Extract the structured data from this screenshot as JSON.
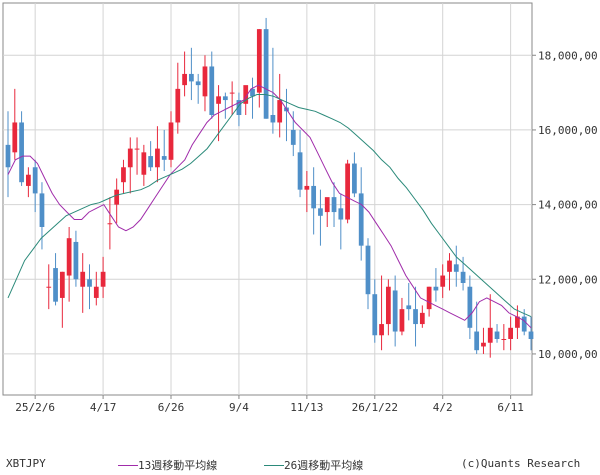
{
  "chart_data": {
    "type": "candlestick",
    "symbol": "XBTJPY",
    "source": "(c)Quants Research",
    "yticks": [
      10000,
      12000,
      14000,
      16000,
      18000
    ],
    "ytick_labels": [
      "10,000,00",
      "12,000,00",
      "14,000,00",
      "16,000,00",
      "18,000,00"
    ],
    "ylim": [
      8900,
      19400
    ],
    "xticks": [
      "25/2/6",
      "4/17",
      "6/26",
      "9/4",
      "11/13",
      "26/1/22",
      "4/2",
      "6/11"
    ],
    "grid": true,
    "colors": {
      "up": "#e8283c",
      "down": "#4f8fc8",
      "ma13": "#a02caa",
      "ma26": "#2b8a7a"
    },
    "series": [
      {
        "name": "13週移動平均線",
        "color": "#a02caa",
        "values": [
          14800,
          15200,
          15300,
          15300,
          15100,
          14700,
          14300,
          14000,
          13800,
          13600,
          13600,
          13800,
          13900,
          14000,
          13700,
          13400,
          13300,
          13400,
          13600,
          13900,
          14200,
          14500,
          14800,
          15000,
          15200,
          15600,
          15900,
          16200,
          16400,
          16500,
          16600,
          16700,
          16800,
          17100,
          17200,
          17100,
          17000,
          16800,
          16500,
          16200,
          16000,
          15800,
          15400,
          15000,
          14600,
          14300,
          14200,
          14100,
          14000,
          13800,
          13500,
          13200,
          12900,
          12500,
          12100,
          11800,
          11500,
          11400,
          11300,
          11200,
          11100,
          11000,
          10900,
          11100,
          11400,
          11500,
          11400,
          11300,
          11100,
          11000,
          10900,
          10700
        ]
      },
      {
        "name": "26週移動平均線",
        "color": "#2b8a7a",
        "values": [
          11500,
          12000,
          12500,
          12800,
          13100,
          13300,
          13500,
          13700,
          13800,
          13900,
          14000,
          14050,
          14150,
          14250,
          14300,
          14350,
          14400,
          14500,
          14650,
          14750,
          14850,
          14950,
          15100,
          15300,
          15500,
          15800,
          16100,
          16400,
          16700,
          16850,
          16950,
          16950,
          16900,
          16800,
          16700,
          16600,
          16550,
          16500,
          16400,
          16300,
          16200,
          16050,
          15850,
          15650,
          15450,
          15200,
          15000,
          14700,
          14450,
          14150,
          13850,
          13500,
          13200,
          12900,
          12600,
          12400,
          12200,
          12000,
          11800,
          11600,
          11400,
          11200,
          11100,
          11000
        ]
      },
      {
        "name": "XBTJPY",
        "ohlc": [
          [
            15600,
            16500,
            14200,
            15000
          ],
          [
            15400,
            17100,
            15200,
            16200
          ],
          [
            16200,
            16500,
            14500,
            14600
          ],
          [
            14500,
            15000,
            14200,
            14800
          ],
          [
            15000,
            15200,
            13800,
            14300
          ],
          [
            14300,
            14600,
            12800,
            13400
          ],
          [
            11800,
            12400,
            11200,
            11800
          ],
          [
            12300,
            12700,
            11300,
            11400
          ],
          [
            11500,
            12200,
            10700,
            12200
          ],
          [
            12100,
            13400,
            11400,
            13100
          ],
          [
            13000,
            13300,
            11800,
            12000
          ],
          [
            11800,
            12700,
            11100,
            12200
          ],
          [
            12000,
            12400,
            11200,
            11800
          ],
          [
            11500,
            12200,
            11300,
            11800
          ],
          [
            11800,
            12600,
            11500,
            12200
          ],
          [
            13500,
            14200,
            12800,
            13500
          ],
          [
            14000,
            14700,
            13500,
            14400
          ],
          [
            14600,
            15200,
            14300,
            15000
          ],
          [
            15000,
            15800,
            14300,
            15500
          ],
          [
            15500,
            15800,
            14800,
            15500
          ],
          [
            14800,
            15600,
            14500,
            15400
          ],
          [
            15300,
            15700,
            14900,
            15000
          ],
          [
            15000,
            16100,
            14600,
            15500
          ],
          [
            15300,
            16000,
            14900,
            15200
          ],
          [
            15200,
            16500,
            15000,
            16200
          ],
          [
            16200,
            17800,
            15900,
            17100
          ],
          [
            17200,
            18100,
            16900,
            17500
          ],
          [
            17500,
            18200,
            16800,
            17300
          ],
          [
            17300,
            17500,
            16700,
            17200
          ],
          [
            16900,
            18000,
            16500,
            17700
          ],
          [
            17700,
            18100,
            16300,
            16400
          ],
          [
            16700,
            17200,
            15700,
            16900
          ],
          [
            16900,
            17000,
            16300,
            16800
          ],
          [
            17000,
            17300,
            16400,
            17000
          ],
          [
            16800,
            17000,
            16100,
            16400
          ],
          [
            16700,
            17100,
            16400,
            17200
          ],
          [
            17100,
            17400,
            16300,
            16900
          ],
          [
            17000,
            18700,
            16600,
            18700
          ],
          [
            18700,
            19000,
            16300,
            16300
          ],
          [
            16400,
            18200,
            15900,
            16200
          ],
          [
            16200,
            17500,
            15800,
            16800
          ],
          [
            16600,
            17100,
            15700,
            16500
          ],
          [
            16000,
            16500,
            15300,
            15600
          ],
          [
            15400,
            16000,
            14200,
            14400
          ],
          [
            14400,
            14900,
            13800,
            14500
          ],
          [
            14500,
            15000,
            13200,
            13900
          ],
          [
            13900,
            14400,
            12900,
            13700
          ],
          [
            13800,
            14100,
            13400,
            14200
          ],
          [
            14200,
            14600,
            13400,
            13800
          ],
          [
            13900,
            14300,
            12800,
            13600
          ],
          [
            13600,
            15200,
            13500,
            15100
          ],
          [
            15100,
            15400,
            14200,
            14300
          ],
          [
            14300,
            15000,
            12500,
            12900
          ],
          [
            12900,
            13100,
            11200,
            11600
          ],
          [
            11600,
            12000,
            10300,
            10500
          ],
          [
            10500,
            12100,
            10100,
            10800
          ],
          [
            10800,
            12000,
            10500,
            11800
          ],
          [
            11700,
            12100,
            10200,
            10600
          ],
          [
            10600,
            11500,
            10500,
            11200
          ],
          [
            11300,
            11900,
            10900,
            11200
          ],
          [
            11200,
            11800,
            10200,
            10800
          ],
          [
            10800,
            11300,
            10700,
            11100
          ],
          [
            11200,
            11800,
            11000,
            11800
          ],
          [
            11800,
            12300,
            11400,
            11700
          ],
          [
            11800,
            12400,
            11500,
            12100
          ],
          [
            12200,
            12700,
            11700,
            12500
          ],
          [
            12400,
            12900,
            11800,
            12200
          ],
          [
            12200,
            12600,
            11700,
            11900
          ],
          [
            11800,
            12100,
            10400,
            10700
          ],
          [
            10600,
            11400,
            10000,
            10100
          ],
          [
            10200,
            10700,
            10000,
            10300
          ],
          [
            10300,
            11600,
            9900,
            10700
          ],
          [
            10600,
            10800,
            10300,
            10400
          ],
          [
            10400,
            10800,
            10100,
            10400
          ],
          [
            10400,
            11000,
            10100,
            10700
          ],
          [
            10700,
            11300,
            10400,
            11000
          ],
          [
            11000,
            11200,
            10500,
            10600
          ],
          [
            10600,
            11000,
            10100,
            10400
          ]
        ]
      }
    ]
  },
  "footer": {
    "symbol": "XBTJPY",
    "legend_13": "13週移動平均線",
    "legend_26": "26週移動平均線",
    "source": "(c)Quants Research"
  }
}
